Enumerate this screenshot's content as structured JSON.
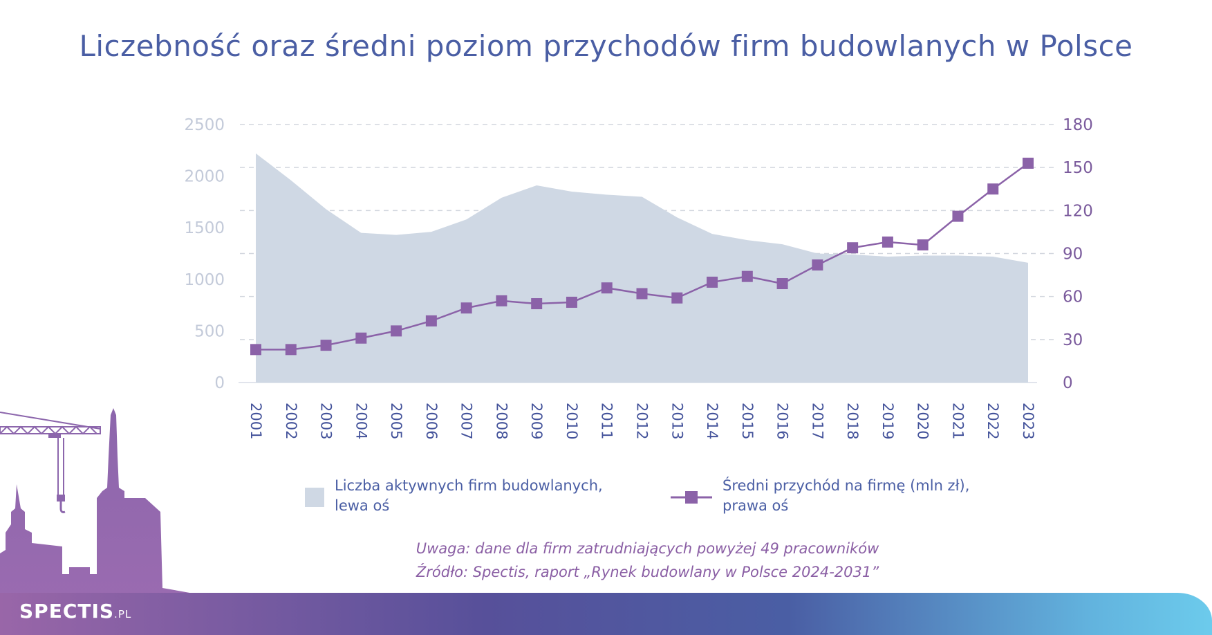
{
  "title": "Liczebność oraz średni poziom przychodów firm budowlanych w Polsce",
  "chart_data": {
    "type": "area+line",
    "categories": [
      "2001",
      "2002",
      "2003",
      "2004",
      "2005",
      "2006",
      "2007",
      "2008",
      "2009",
      "2010",
      "2011",
      "2012",
      "2013",
      "2014",
      "2015",
      "2016",
      "2017",
      "2018",
      "2019",
      "2020",
      "2021",
      "2022",
      "2023"
    ],
    "series": [
      {
        "name": "Liczba aktywnych firm budowlanych, lewa oś",
        "type": "area",
        "axis": "left",
        "color": "#cfd8e4",
        "values": [
          2220,
          1960,
          1680,
          1450,
          1430,
          1460,
          1580,
          1790,
          1910,
          1850,
          1820,
          1800,
          1600,
          1440,
          1380,
          1340,
          1250,
          1240,
          1220,
          1230,
          1230,
          1220,
          1160
        ]
      },
      {
        "name": "Średni przychód na firmę (mln zł), prawa oś",
        "type": "line",
        "axis": "right",
        "color": "#8b62a8",
        "values": [
          23,
          23,
          26,
          31,
          36,
          43,
          52,
          57,
          55,
          56,
          66,
          62,
          59,
          70,
          74,
          69,
          82,
          94,
          98,
          96,
          116,
          135,
          153
        ]
      }
    ],
    "y_left": {
      "min": 0,
      "max": 2500,
      "ticks": [
        0,
        500,
        1000,
        1500,
        2000,
        2500
      ]
    },
    "y_right": {
      "min": 0,
      "max": 180,
      "ticks": [
        0,
        30,
        60,
        90,
        120,
        150,
        180
      ]
    },
    "grid": "dashed-horizontal",
    "legend_position": "bottom"
  },
  "legend": {
    "area_line1": "Liczba aktywnych firm budowlanych,",
    "area_line2": "lewa oś",
    "line_line1": "Średni przychód na firmę (mln zł),",
    "line_line2": "prawa oś"
  },
  "note": "Uwaga: dane dla firm zatrudniających powyżej 49 pracowników",
  "source": "Źródło: Spectis, raport „Rynek budowlany w Polsce 2024-2031”",
  "logo": {
    "main": "SPECTIS",
    "suffix": ".PL"
  }
}
